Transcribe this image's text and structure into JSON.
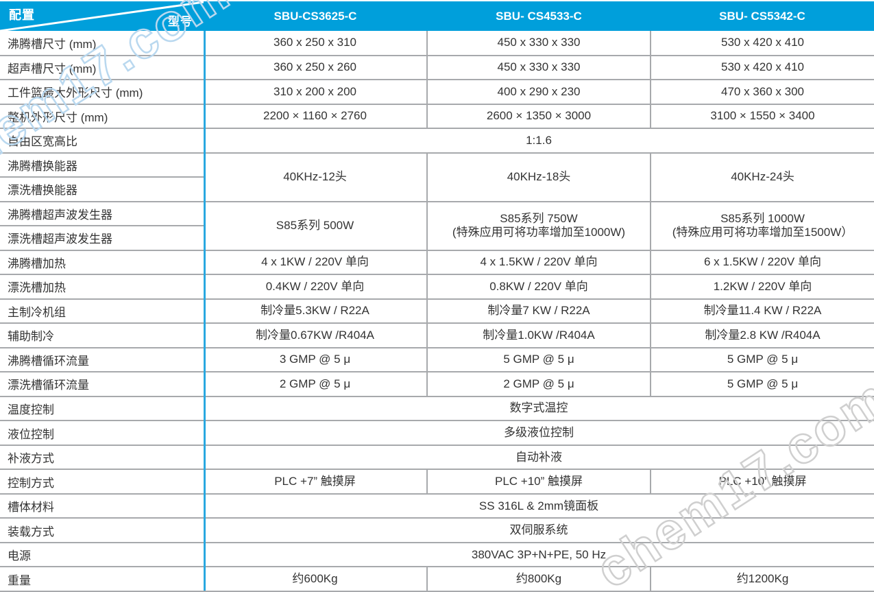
{
  "colors": {
    "header_bg": "#009FDB",
    "divider_blue": "#29A8E0",
    "grid_line": "#A7A9AC",
    "text": "#333333",
    "watermark_blue": "#B9D8EF",
    "watermark_gray": "#CFCFCF"
  },
  "watermark": {
    "top_left": "chem17.com",
    "bottom_right": "chem17.com"
  },
  "table": {
    "corner": {
      "top_left": "配置",
      "bottom_right": "型号"
    },
    "models": [
      "SBU-CS3625-C",
      "SBU- CS4533-C",
      "SBU- CS5342-C"
    ],
    "rows": [
      {
        "label": "沸腾槽尺寸 (mm)",
        "values": [
          "360 x 250 x 310",
          "450 x 330 x 330",
          "530 x 420 x 410"
        ]
      },
      {
        "label": "超声槽尺寸 (mm)",
        "values": [
          "360 x 250 x 260",
          "450 x 330 x 330",
          "530 x 420 x 410"
        ]
      },
      {
        "label": "工件篮最大外形尺寸 (mm)",
        "values": [
          "310 x 200 x 200",
          "400 x 290 x 230",
          "470 x 360 x 300"
        ]
      },
      {
        "label": "整机外形尺寸 (mm)",
        "values": [
          "2200 × 1160 × 2760",
          "2600 × 1350 × 3000",
          "3100 × 1550 × 3400"
        ]
      },
      {
        "label": "自由区宽高比",
        "span_value": "1:1.6"
      },
      {
        "labels": [
          "沸腾槽换能器",
          "漂洗槽换能器"
        ],
        "values": [
          "40KHz-12头",
          "40KHz-18头",
          "40KHz-24头"
        ]
      },
      {
        "labels": [
          "沸腾槽超声波发生器",
          "漂洗槽超声波发生器"
        ],
        "values": [
          "S85系列 500W",
          "S85系列 750W\n(特殊应用可将功率增加至1000W)",
          "S85系列 1000W\n(特殊应用可将功率增加至1500W）"
        ]
      },
      {
        "label": "沸腾槽加热",
        "values": [
          "4 x 1KW / 220V 单向",
          "4 x 1.5KW / 220V 单向",
          "6 x 1.5KW / 220V 单向"
        ]
      },
      {
        "label": "漂洗槽加热",
        "values": [
          "0.4KW / 220V 单向",
          "0.8KW / 220V 单向",
          "1.2KW / 220V 单向"
        ]
      },
      {
        "label": "主制冷机组",
        "values": [
          "制冷量5.3KW / R22A",
          "制冷量7 KW / R22A",
          "制冷量11.4 KW / R22A"
        ]
      },
      {
        "label": "辅助制冷",
        "values": [
          "制冷量0.67KW /R404A",
          "制冷量1.0KW /R404A",
          "制冷量2.8 KW /R404A"
        ]
      },
      {
        "label": "沸腾槽循环流量",
        "values": [
          "3 GMP @ 5 μ",
          "5 GMP @ 5 μ",
          "5 GMP @ 5 μ"
        ]
      },
      {
        "label": "漂洗槽循环流量",
        "values": [
          "2 GMP @ 5 μ",
          "2 GMP @ 5 μ",
          "5 GMP @ 5 μ"
        ]
      },
      {
        "label": "温度控制",
        "span_value": "数字式温控"
      },
      {
        "label": "液位控制",
        "span_value": "多级液位控制"
      },
      {
        "label": "补液方式",
        "span_value": "自动补液"
      },
      {
        "label": "控制方式",
        "values": [
          "PLC +7” 触摸屏",
          "PLC +10” 触摸屏",
          "PLC +10” 触摸屏"
        ]
      },
      {
        "label": "槽体材料",
        "span_value": "SS 316L & 2mm镜面板"
      },
      {
        "label": "装载方式",
        "span_value": "双伺服系统"
      },
      {
        "label": "电源",
        "span_value": "380VAC 3P+N+PE, 50 Hz"
      },
      {
        "label": "重量",
        "values": [
          "约600Kg",
          "约800Kg",
          "约1200Kg"
        ]
      }
    ]
  }
}
